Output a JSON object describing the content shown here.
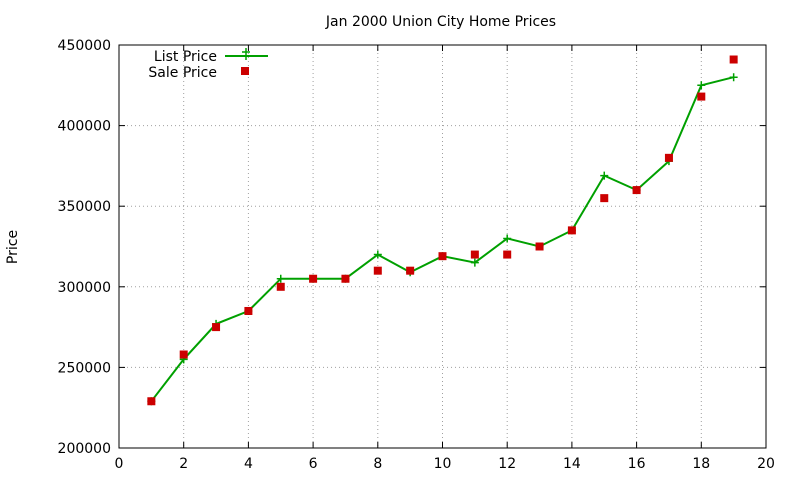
{
  "chart_data": {
    "type": "line",
    "title": "Jan 2000 Union City Home Prices",
    "xlabel": "",
    "ylabel": "Price",
    "xlim": [
      0,
      20
    ],
    "ylim": [
      200000,
      450000
    ],
    "xticks": [
      "0",
      "2",
      "4",
      "6",
      "8",
      "10",
      "12",
      "14",
      "16",
      "18",
      "20"
    ],
    "yticks": [
      "200000",
      "250000",
      "300000",
      "350000",
      "400000",
      "450000"
    ],
    "grid": true,
    "legend_position": "top-left",
    "series": [
      {
        "name": "List Price",
        "style": "line+cross",
        "color": "#00a000",
        "x": [
          1,
          2,
          3,
          4,
          5,
          6,
          7,
          8,
          9,
          10,
          11,
          12,
          13,
          14,
          15,
          16,
          17,
          18,
          19
        ],
        "y": [
          229000,
          255000,
          277000,
          285000,
          305000,
          305000,
          305000,
          320000,
          309000,
          319000,
          315000,
          330000,
          325000,
          335000,
          369000,
          360000,
          378000,
          425000,
          430000
        ]
      },
      {
        "name": "Sale Price",
        "style": "points",
        "color": "#cc0000",
        "x": [
          1,
          2,
          3,
          4,
          5,
          6,
          7,
          8,
          9,
          10,
          11,
          12,
          13,
          14,
          15,
          16,
          17,
          18,
          19
        ],
        "y": [
          229000,
          258000,
          275000,
          285000,
          300000,
          305000,
          305000,
          310000,
          310000,
          319000,
          320000,
          320000,
          325000,
          335000,
          355000,
          360000,
          380000,
          418000,
          441000
        ]
      }
    ]
  }
}
